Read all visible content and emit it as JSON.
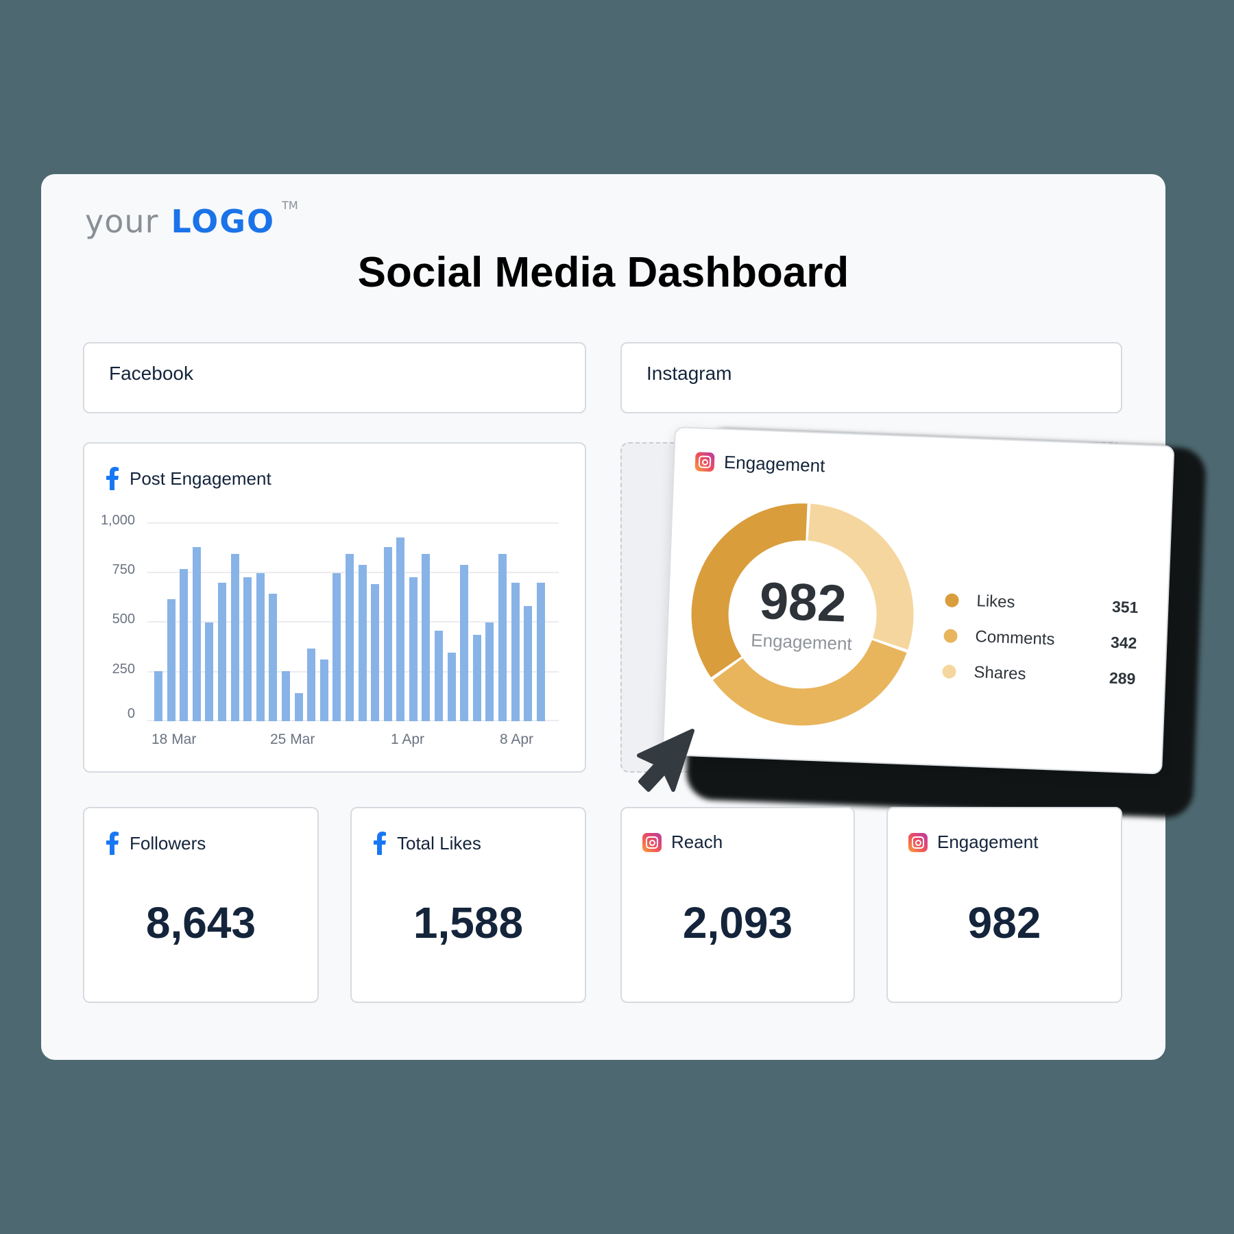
{
  "logo": {
    "prefix": "your",
    "brand": "LOGO",
    "trademark": "TM",
    "brand_color": "#1a73e8"
  },
  "page_title": "Social Media Dashboard",
  "sections": [
    {
      "label": "Facebook"
    },
    {
      "label": "Instagram"
    }
  ],
  "post_engagement": {
    "title": "Post Engagement",
    "platform_icon": "facebook-icon",
    "y_ticks": [
      "1,000",
      "750",
      "500",
      "250",
      "0"
    ],
    "x_ticks": [
      "18 Mar",
      "25 Mar",
      "1 Apr",
      "8 Apr"
    ]
  },
  "instagram_engagement_card": {
    "title": "Engagement",
    "platform_icon": "instagram-icon",
    "total": "982",
    "total_label": "Engagement",
    "legend": [
      {
        "label": "Likes",
        "value": "351",
        "color": "#d99d3c"
      },
      {
        "label": "Comments",
        "value": "342",
        "color": "#e8b55d"
      },
      {
        "label": "Shares",
        "value": "289",
        "color": "#f5d69e"
      }
    ]
  },
  "stats": [
    {
      "label": "Followers",
      "value": "8,643",
      "platform_icon": "facebook-icon"
    },
    {
      "label": "Total Likes",
      "value": "1,588",
      "platform_icon": "facebook-icon"
    },
    {
      "label": "Reach",
      "value": "2,093",
      "platform_icon": "instagram-icon"
    },
    {
      "label": "Engagement",
      "value": "982",
      "platform_icon": "instagram-icon"
    }
  ],
  "chart_data": [
    {
      "type": "bar",
      "title": "Post Engagement",
      "xlabel": "",
      "ylabel": "",
      "ylim": [
        0,
        1000
      ],
      "grid": true,
      "x_tick_labels": [
        "18 Mar",
        "25 Mar",
        "1 Apr",
        "8 Apr"
      ],
      "categories": [
        "17 Mar",
        "18 Mar",
        "19 Mar",
        "20 Mar",
        "21 Mar",
        "22 Mar",
        "23 Mar",
        "24 Mar",
        "25 Mar",
        "26 Mar",
        "27 Mar",
        "28 Mar",
        "29 Mar",
        "30 Mar",
        "31 Mar",
        "1 Apr",
        "2 Apr",
        "3 Apr",
        "4 Apr",
        "5 Apr",
        "6 Apr",
        "7 Apr",
        "8 Apr",
        "9 Apr",
        "10 Apr",
        "11 Apr",
        "12 Apr",
        "13 Apr",
        "14 Apr",
        "15 Apr",
        "16 Apr"
      ],
      "values": [
        257,
        621,
        775,
        887,
        502,
        705,
        852,
        733,
        754,
        649,
        257,
        145,
        369,
        313,
        754,
        852,
        796,
        698,
        887,
        936,
        733,
        852,
        460,
        348,
        796,
        439,
        502,
        852,
        705,
        586,
        705
      ],
      "color": "#88b3e7"
    },
    {
      "type": "pie",
      "title": "Engagement",
      "center_label": "982 Engagement",
      "categories": [
        "Likes",
        "Comments",
        "Shares"
      ],
      "values": [
        351,
        342,
        289
      ],
      "colors": [
        "#d99d3c",
        "#e8b55d",
        "#f5d69e"
      ],
      "legend_position": "right"
    }
  ]
}
